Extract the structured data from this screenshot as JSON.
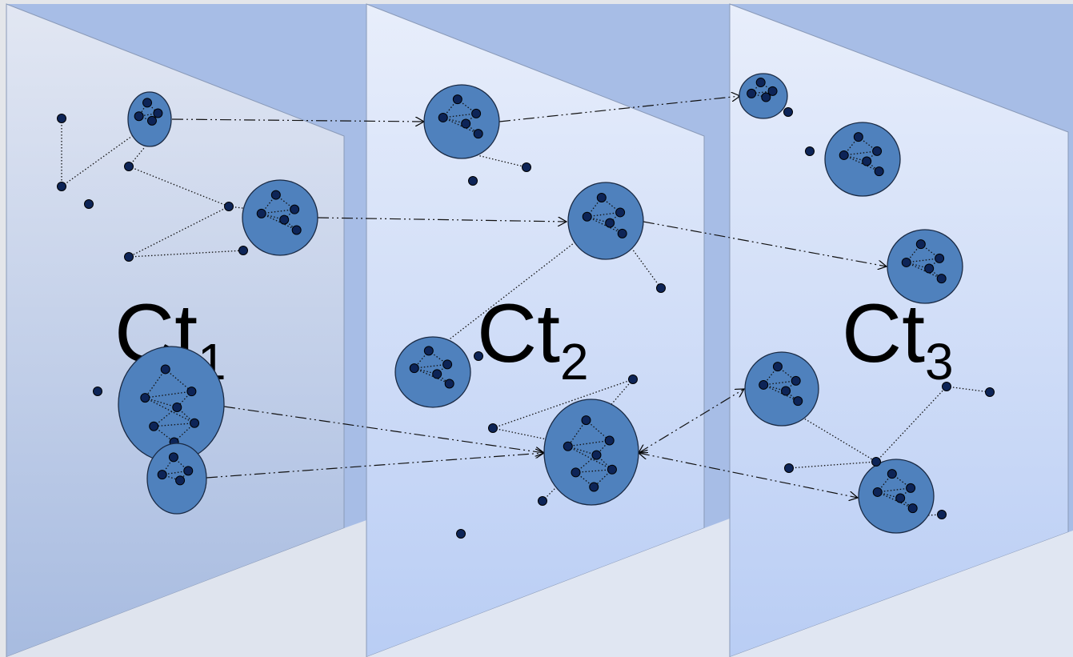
{
  "panels": [
    {
      "label": "Ct",
      "subscript": "1"
    },
    {
      "label": "Ct",
      "subscript": "2"
    },
    {
      "label": "Ct",
      "subscript": "3"
    }
  ]
}
